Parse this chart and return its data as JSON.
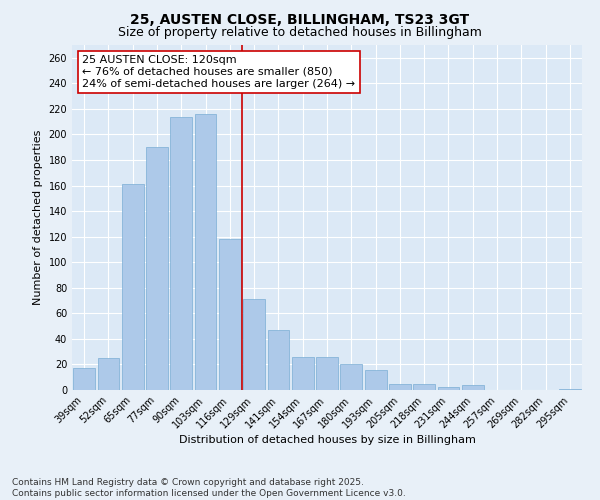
{
  "title1": "25, AUSTEN CLOSE, BILLINGHAM, TS23 3GT",
  "title2": "Size of property relative to detached houses in Billingham",
  "xlabel": "Distribution of detached houses by size in Billingham",
  "ylabel": "Number of detached properties",
  "categories": [
    "39sqm",
    "52sqm",
    "65sqm",
    "77sqm",
    "90sqm",
    "103sqm",
    "116sqm",
    "129sqm",
    "141sqm",
    "154sqm",
    "167sqm",
    "180sqm",
    "193sqm",
    "205sqm",
    "218sqm",
    "231sqm",
    "244sqm",
    "257sqm",
    "269sqm",
    "282sqm",
    "295sqm"
  ],
  "values": [
    17,
    25,
    161,
    190,
    214,
    216,
    118,
    71,
    47,
    26,
    26,
    20,
    16,
    5,
    5,
    2,
    4,
    0,
    0,
    0,
    1
  ],
  "bar_color": "#adc9e9",
  "bar_edge_color": "#7aadd4",
  "vline_x": 6.5,
  "vline_color": "#cc0000",
  "annotation_title": "25 AUSTEN CLOSE: 120sqm",
  "annotation_line1": "← 76% of detached houses are smaller (850)",
  "annotation_line2": "24% of semi-detached houses are larger (264) →",
  "annotation_box_color": "#ffffff",
  "annotation_box_edge": "#cc0000",
  "ylim": [
    0,
    270
  ],
  "yticks": [
    0,
    20,
    40,
    60,
    80,
    100,
    120,
    140,
    160,
    180,
    200,
    220,
    240,
    260
  ],
  "bg_color": "#dce9f6",
  "fig_color": "#e8f0f8",
  "footer1": "Contains HM Land Registry data © Crown copyright and database right 2025.",
  "footer2": "Contains public sector information licensed under the Open Government Licence v3.0.",
  "title_fontsize": 10,
  "subtitle_fontsize": 9,
  "axis_label_fontsize": 8,
  "tick_fontsize": 7,
  "annotation_fontsize": 8,
  "footer_fontsize": 6.5
}
